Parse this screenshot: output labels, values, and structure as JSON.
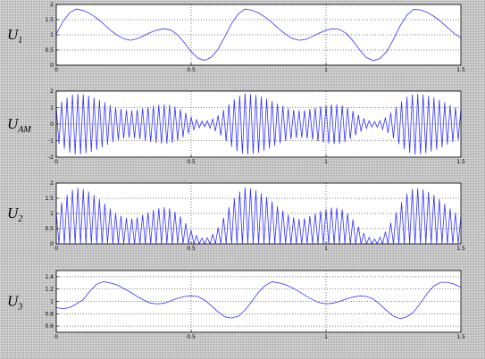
{
  "chart_data": [
    {
      "type": "line",
      "ylabel": "U",
      "ylabel_sub": "1",
      "color": "#3333ff",
      "grid": true,
      "xlim": [
        0,
        1.5
      ],
      "xticks": [
        0,
        0.5,
        1,
        1.5
      ],
      "ylim": [
        0,
        2
      ],
      "yticks": [
        0,
        0.5,
        1,
        1.5,
        2
      ],
      "x": [
        0,
        0.025,
        0.05,
        0.075,
        0.1,
        0.125,
        0.15,
        0.175,
        0.2,
        0.225,
        0.25,
        0.275,
        0.3,
        0.325,
        0.35,
        0.375,
        0.4,
        0.425,
        0.45,
        0.475,
        0.5,
        0.525,
        0.55,
        0.575,
        0.6,
        0.625,
        0.65,
        0.675,
        0.7,
        0.725,
        0.75,
        0.775,
        0.8,
        0.825,
        0.85,
        0.875,
        0.9,
        0.925,
        0.95,
        0.975,
        1,
        1.025,
        1.05,
        1.075,
        1.1,
        1.125,
        1.15,
        1.175,
        1.2,
        1.225,
        1.25,
        1.275,
        1.3,
        1.325,
        1.35,
        1.375,
        1.4,
        1.425,
        1.45,
        1.475,
        1.5
      ],
      "values": [
        1.03,
        1.44,
        1.73,
        1.85,
        1.8,
        1.7,
        1.55,
        1.36,
        1.16,
        0.99,
        0.87,
        0.82,
        0.87,
        0.97,
        1.08,
        1.16,
        1.2,
        1.16,
        1.0,
        0.74,
        0.45,
        0.23,
        0.16,
        0.26,
        0.53,
        0.94,
        1.37,
        1.69,
        1.85,
        1.81,
        1.72,
        1.58,
        1.4,
        1.2,
        1.02,
        0.88,
        0.82,
        0.85,
        0.95,
        1.06,
        1.15,
        1.2,
        1.18,
        1.05,
        0.8,
        0.5,
        0.25,
        0.15,
        0.22,
        0.45,
        0.85,
        1.3,
        1.65,
        1.84,
        1.82,
        1.74,
        1.61,
        1.44,
        1.24,
        1.05,
        0.9
      ]
    },
    {
      "type": "line",
      "ylabel": "U",
      "ylabel_sub": "AM",
      "color": "#3333ff",
      "grid": true,
      "xlim": [
        0,
        1.5
      ],
      "xticks": [
        0,
        0.5,
        1,
        1.5
      ],
      "ylim": [
        -2,
        2
      ],
      "yticks": [
        -2,
        -1,
        0,
        1,
        2
      ],
      "x": [
        0,
        0.01,
        0.02,
        0.03,
        0.04,
        0.05,
        0.06,
        0.07,
        0.08,
        0.09,
        0.1,
        0.11,
        0.12,
        0.13,
        0.14,
        0.15,
        0.16,
        0.17,
        0.18,
        0.19,
        0.2,
        0.21,
        0.22,
        0.23,
        0.24,
        0.25,
        0.26,
        0.27,
        0.28,
        0.29,
        0.3,
        0.31,
        0.32,
        0.33,
        0.34,
        0.35,
        0.36,
        0.37,
        0.38,
        0.39,
        0.4,
        0.41,
        0.42,
        0.43,
        0.44,
        0.45,
        0.46,
        0.47,
        0.48,
        0.49,
        0.5,
        0.51,
        0.52,
        0.53,
        0.54,
        0.55,
        0.56,
        0.57,
        0.58,
        0.59,
        0.6,
        0.61,
        0.62,
        0.63,
        0.64,
        0.65,
        0.66,
        0.67,
        0.68,
        0.69,
        0.7,
        0.71,
        0.72,
        0.73,
        0.74,
        0.75,
        0.76,
        0.77,
        0.78,
        0.79,
        0.8,
        0.81,
        0.82,
        0.83,
        0.84,
        0.85,
        0.86,
        0.87,
        0.88,
        0.89,
        0.9,
        0.91,
        0.92,
        0.93,
        0.94,
        0.95,
        0.96,
        0.97,
        0.98,
        0.99,
        1,
        1.01,
        1.02,
        1.03,
        1.04,
        1.05,
        1.06,
        1.07,
        1.08,
        1.09,
        1.1,
        1.11,
        1.12,
        1.13,
        1.14,
        1.15,
        1.16,
        1.17,
        1.18,
        1.19,
        1.2,
        1.21,
        1.22,
        1.23,
        1.24,
        1.25,
        1.26,
        1.27,
        1.28,
        1.29,
        1.3,
        1.31,
        1.32,
        1.33,
        1.34,
        1.35,
        1.36,
        1.37,
        1.38,
        1.39,
        1.4,
        1.41,
        1.42,
        1.43,
        1.44,
        1.45,
        1.46,
        1.47,
        1.48,
        1.49,
        1.5
      ],
      "values": [
        1.03,
        -1.19,
        1.36,
        -1.5,
        1.61,
        -1.73,
        1.78,
        -1.83,
        1.84,
        -1.82,
        1.8,
        -1.76,
        1.72,
        -1.67,
        1.61,
        -1.55,
        1.47,
        -1.4,
        1.32,
        -1.24,
        1.16,
        -1.09,
        1.02,
        -0.97,
        0.92,
        -0.87,
        0.85,
        -0.83,
        0.83,
        -0.85,
        0.87,
        -0.91,
        0.95,
        -0.99,
        1.04,
        -1.08,
        1.11,
        -1.14,
        1.17,
        -1.18,
        1.2,
        -1.18,
        1.17,
        -1.13,
        1.06,
        -1.0,
        0.9,
        -0.79,
        0.68,
        -0.57,
        0.45,
        -0.36,
        0.27,
        -0.22,
        0.19,
        -0.16,
        0.2,
        -0.24,
        0.31,
        -0.42,
        0.53,
        -0.69,
        0.86,
        -1.03,
        1.2,
        -1.37,
        1.5,
        -1.63,
        1.72,
        -1.79,
        1.85,
        -1.83,
        1.82,
        -1.79,
        1.76,
        -1.72,
        1.66,
        -1.61,
        1.54,
        -1.47,
        1.4,
        -1.32,
        1.24,
        -1.16,
        1.09,
        -1.02,
        0.96,
        -0.91,
        0.87,
        -0.84,
        0.82,
        -0.83,
        0.84,
        -0.87,
        0.91,
        -0.95,
        0.99,
        -1.04,
        1.08,
        -1.11,
        1.15,
        -1.17,
        1.19,
        -1.2,
        1.19,
        -1.18,
        1.13,
        -1.08,
        1.0,
        -0.9,
        0.8,
        -0.68,
        0.56,
        -0.45,
        0.35,
        -0.25,
        0.21,
        -0.17,
        0.16,
        -0.19,
        0.22,
        -0.31,
        0.4,
        -0.53,
        0.69,
        -0.85,
        1.03,
        -1.21,
        1.37,
        -1.51,
        1.65,
        -1.73,
        1.8,
        -1.84,
        1.83,
        -1.82,
        1.79,
        -1.76,
        1.71,
        -1.66,
        1.61,
        -1.54,
        1.47,
        -1.4,
        1.32,
        -1.24,
        1.16,
        -1.09,
        1.02,
        -0.96,
        0.9
      ]
    },
    {
      "type": "line",
      "ylabel": "U",
      "ylabel_sub": "2",
      "color": "#3333ff",
      "grid": true,
      "xlim": [
        0,
        1.5
      ],
      "xticks": [
        0,
        0.5,
        1,
        1.5
      ],
      "ylim": [
        0,
        2
      ],
      "yticks": [
        0,
        0.5,
        1,
        1.5,
        2
      ],
      "x": [
        0,
        0.01,
        0.02,
        0.03,
        0.04,
        0.05,
        0.06,
        0.07,
        0.08,
        0.09,
        0.1,
        0.11,
        0.12,
        0.13,
        0.14,
        0.15,
        0.16,
        0.17,
        0.18,
        0.19,
        0.2,
        0.21,
        0.22,
        0.23,
        0.24,
        0.25,
        0.26,
        0.27,
        0.28,
        0.29,
        0.3,
        0.31,
        0.32,
        0.33,
        0.34,
        0.35,
        0.36,
        0.37,
        0.38,
        0.39,
        0.4,
        0.41,
        0.42,
        0.43,
        0.44,
        0.45,
        0.46,
        0.47,
        0.48,
        0.49,
        0.5,
        0.51,
        0.52,
        0.53,
        0.54,
        0.55,
        0.56,
        0.57,
        0.58,
        0.59,
        0.6,
        0.61,
        0.62,
        0.63,
        0.64,
        0.65,
        0.66,
        0.67,
        0.68,
        0.69,
        0.7,
        0.71,
        0.72,
        0.73,
        0.74,
        0.75,
        0.76,
        0.77,
        0.78,
        0.79,
        0.8,
        0.81,
        0.82,
        0.83,
        0.84,
        0.85,
        0.86,
        0.87,
        0.88,
        0.89,
        0.9,
        0.91,
        0.92,
        0.93,
        0.94,
        0.95,
        0.96,
        0.97,
        0.98,
        0.99,
        1,
        1.01,
        1.02,
        1.03,
        1.04,
        1.05,
        1.06,
        1.07,
        1.08,
        1.09,
        1.1,
        1.11,
        1.12,
        1.13,
        1.14,
        1.15,
        1.16,
        1.17,
        1.18,
        1.19,
        1.2,
        1.21,
        1.22,
        1.23,
        1.24,
        1.25,
        1.26,
        1.27,
        1.28,
        1.29,
        1.3,
        1.31,
        1.32,
        1.33,
        1.34,
        1.35,
        1.36,
        1.37,
        1.38,
        1.39,
        1.4,
        1.41,
        1.42,
        1.43,
        1.44,
        1.45,
        1.46,
        1.47,
        1.48,
        1.49,
        1.5
      ],
      "values": [
        1.03,
        0,
        1.36,
        0,
        1.61,
        0,
        1.78,
        0,
        1.84,
        0,
        1.8,
        0,
        1.72,
        0,
        1.61,
        0,
        1.47,
        0,
        1.32,
        0,
        1.16,
        0,
        1.02,
        0,
        0.92,
        0,
        0.85,
        0,
        0.83,
        0,
        0.87,
        0,
        0.95,
        0,
        1.04,
        0,
        1.11,
        0,
        1.17,
        0,
        1.2,
        0,
        1.17,
        0,
        1.06,
        0,
        0.9,
        0,
        0.68,
        0,
        0.45,
        0,
        0.27,
        0,
        0.19,
        0,
        0.2,
        0,
        0.31,
        0,
        0.53,
        0,
        0.86,
        0,
        1.2,
        0,
        1.5,
        0,
        1.72,
        0,
        1.85,
        0,
        1.82,
        0,
        1.76,
        0,
        1.66,
        0,
        1.54,
        0,
        1.4,
        0,
        1.24,
        0,
        1.09,
        0,
        0.96,
        0,
        0.87,
        0,
        0.82,
        0,
        0.84,
        0,
        0.91,
        0,
        0.99,
        0,
        1.08,
        0,
        1.15,
        0,
        1.19,
        0,
        1.19,
        0,
        1.13,
        0,
        1.0,
        0,
        0.8,
        0,
        0.56,
        0,
        0.35,
        0,
        0.21,
        0,
        0.16,
        0,
        0.22,
        0,
        0.4,
        0,
        0.69,
        0,
        1.03,
        0,
        1.37,
        0,
        1.65,
        0,
        1.8,
        0,
        1.83,
        0,
        1.79,
        0,
        1.71,
        0,
        1.61,
        0,
        1.47,
        0,
        1.32,
        0,
        1.16,
        0,
        1.02,
        0,
        0.9
      ]
    },
    {
      "type": "line",
      "ylabel": "U",
      "ylabel_sub": "3",
      "color": "#3333ff",
      "grid": true,
      "xlim": [
        0,
        1.5
      ],
      "xticks": [
        0,
        0.5,
        1,
        1.5
      ],
      "ylim": [
        0.5,
        1.5
      ],
      "yticks": [
        0.6,
        0.8,
        1,
        1.2,
        1.4
      ],
      "x": [
        0,
        0.025,
        0.05,
        0.075,
        0.1,
        0.125,
        0.15,
        0.175,
        0.2,
        0.225,
        0.25,
        0.275,
        0.3,
        0.325,
        0.35,
        0.375,
        0.4,
        0.425,
        0.45,
        0.475,
        0.5,
        0.525,
        0.55,
        0.575,
        0.6,
        0.625,
        0.65,
        0.675,
        0.7,
        0.725,
        0.75,
        0.775,
        0.8,
        0.825,
        0.85,
        0.875,
        0.9,
        0.925,
        0.95,
        0.975,
        1,
        1.025,
        1.05,
        1.075,
        1.1,
        1.125,
        1.15,
        1.175,
        1.2,
        1.225,
        1.25,
        1.275,
        1.3,
        1.325,
        1.35,
        1.375,
        1.4,
        1.425,
        1.45,
        1.475,
        1.5
      ],
      "values": [
        0.9,
        0.88,
        0.9,
        0.96,
        1.03,
        1.17,
        1.28,
        1.32,
        1.3,
        1.27,
        1.21,
        1.15,
        1.08,
        1.02,
        0.97,
        0.96,
        0.97,
        1.01,
        1.05,
        1.08,
        1.09,
        1.08,
        1.02,
        0.93,
        0.83,
        0.75,
        0.73,
        0.76,
        0.86,
        1.0,
        1.15,
        1.26,
        1.32,
        1.3,
        1.27,
        1.22,
        1.16,
        1.09,
        1.03,
        0.98,
        0.96,
        0.97,
        1.0,
        1.04,
        1.07,
        1.09,
        1.08,
        1.04,
        0.95,
        0.85,
        0.76,
        0.72,
        0.75,
        0.83,
        0.97,
        1.13,
        1.25,
        1.31,
        1.31,
        1.28,
        1.23
      ]
    }
  ]
}
